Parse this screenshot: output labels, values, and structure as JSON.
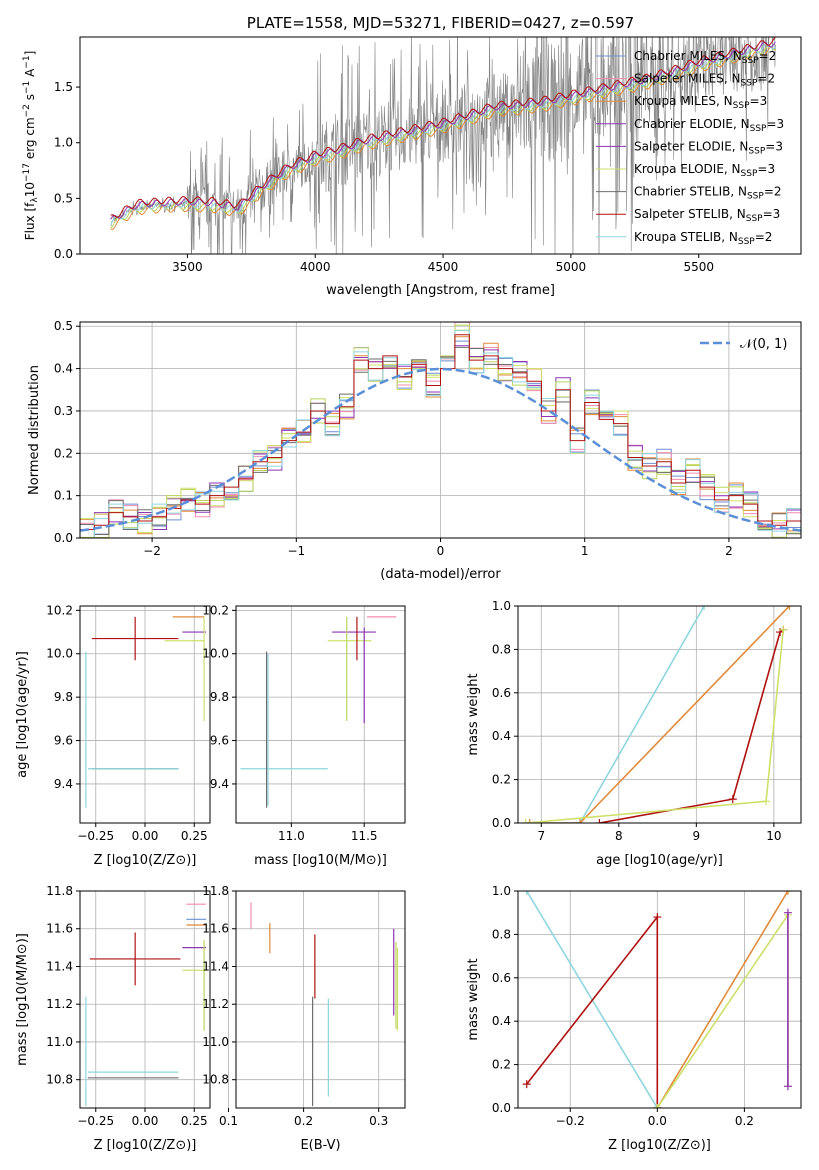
{
  "colors": {
    "chabrier_miles": "#6f8fcf",
    "salpeter_miles": "#f08cb0",
    "kroupa_miles": "#e08a3a",
    "chabrier_elodie": "#8e35b5",
    "salpeter_elodie": "#b9d65a",
    "kroupa_elodie": "#cfe06a",
    "chabrier_stelib": "#6e6e6e",
    "salpeter_stelib": "#b01010",
    "kroupa_stelib": "#8fd6df",
    "gauss": "#5b8fd8",
    "data": "#808080"
  },
  "legend1": {
    "entries": [
      {
        "pre": "Chabrier MILES, N",
        "sub": "SSP",
        "post": "=2",
        "color": "chabrier_miles"
      },
      {
        "pre": "Salpeter MILES, N",
        "sub": "SSP",
        "post": "=2",
        "color": "salpeter_miles"
      },
      {
        "pre": "Kroupa MILES, N",
        "sub": "SSP",
        "post": "=3",
        "color": "kroupa_miles"
      },
      {
        "pre": "Chabrier ELODIE, N",
        "sub": "SSP",
        "post": "=3",
        "color": "chabrier_elodie"
      },
      {
        "pre": "Salpeter ELODIE, N",
        "sub": "SSP",
        "post": "=3",
        "color": "chabrier_elodie"
      },
      {
        "pre": "Kroupa ELODIE, N",
        "sub": "SSP",
        "post": "=3",
        "color": "kroupa_elodie"
      },
      {
        "pre": "Chabrier STELIB, N",
        "sub": "SSP",
        "post": "=2",
        "color": "chabrier_stelib"
      },
      {
        "pre": "Salpeter STELIB, N",
        "sub": "SSP",
        "post": "=3",
        "color": "salpeter_stelib"
      },
      {
        "pre": "Kroupa STELIB, N",
        "sub": "SSP",
        "post": "=2",
        "color": "kroupa_stelib"
      }
    ]
  },
  "legend2": {
    "label": "𝒩(0, 1)"
  },
  "chart_data": [
    {
      "type": "line",
      "title": "PLATE=1558, MJD=53271, FIBERID=0427, z=0.597",
      "xlabel": "wavelength [Angstrom, rest frame]",
      "ylabel": "Flux [f_λ 10^-17 erg cm^-2 s^-1 A^-1]",
      "xlim": [
        3080,
        5900
      ],
      "ylim": [
        0,
        1.95
      ],
      "xticks": [
        "3500",
        "4000",
        "4500",
        "5000",
        "5500"
      ],
      "yticks": [
        "0.0",
        "0.5",
        "1.0",
        "1.5"
      ],
      "model_x": [
        3200,
        3300,
        3400,
        3500,
        3600,
        3700,
        3800,
        3900,
        4000,
        4100,
        4200,
        4300,
        4400,
        4500,
        4600,
        4700,
        4800,
        4900,
        5000,
        5100,
        5200,
        5300,
        5400,
        5500,
        5600,
        5700,
        5800
      ],
      "model_y": [
        0.28,
        0.42,
        0.44,
        0.45,
        0.44,
        0.4,
        0.6,
        0.76,
        0.86,
        0.92,
        1.0,
        1.05,
        1.1,
        1.15,
        1.22,
        1.3,
        1.32,
        1.35,
        1.4,
        1.45,
        1.5,
        1.55,
        1.62,
        1.7,
        1.76,
        1.82,
        1.88
      ]
    },
    {
      "type": "bar",
      "title": "",
      "xlabel": "(data-model)/error",
      "ylabel": "Normed distribution",
      "xlim": [
        -2.5,
        2.5
      ],
      "ylim": [
        0,
        0.51
      ],
      "xticks": [
        "−2",
        "−1",
        "0",
        "1",
        "2"
      ],
      "yticks": [
        "0.0",
        "0.1",
        "0.2",
        "0.3",
        "0.4",
        "0.5"
      ],
      "bins": [
        -2.5,
        -2.4,
        -2.3,
        -2.2,
        -2.1,
        -2.0,
        -1.9,
        -1.8,
        -1.7,
        -1.6,
        -1.5,
        -1.4,
        -1.3,
        -1.2,
        -1.1,
        -1.0,
        -0.9,
        -0.8,
        -0.7,
        -0.6,
        -0.5,
        -0.4,
        -0.3,
        -0.2,
        -0.1,
        0.0,
        0.1,
        0.2,
        0.3,
        0.4,
        0.5,
        0.6,
        0.7,
        0.8,
        0.9,
        1.0,
        1.1,
        1.2,
        1.3,
        1.4,
        1.5,
        1.6,
        1.7,
        1.8,
        1.9,
        2.0,
        2.1,
        2.2,
        2.3,
        2.4,
        2.5
      ],
      "hist": [
        0.02,
        0.03,
        0.06,
        0.05,
        0.04,
        0.05,
        0.07,
        0.09,
        0.08,
        0.1,
        0.12,
        0.14,
        0.18,
        0.19,
        0.23,
        0.25,
        0.3,
        0.27,
        0.31,
        0.42,
        0.4,
        0.43,
        0.38,
        0.41,
        0.36,
        0.4,
        0.48,
        0.42,
        0.43,
        0.4,
        0.39,
        0.37,
        0.3,
        0.35,
        0.23,
        0.32,
        0.28,
        0.27,
        0.19,
        0.17,
        0.18,
        0.13,
        0.16,
        0.12,
        0.09,
        0.1,
        0.08,
        0.04,
        0.03,
        0.04
      ],
      "series": [
        {
          "name": "𝒩(0, 1)",
          "type": "gaussian",
          "mu": 0,
          "sigma": 1
        }
      ]
    },
    {
      "type": "scatter",
      "xlabel": "Z [log10(Z/Z⊙)]",
      "ylabel": "age [log10(age/yr)]",
      "xlim": [
        -0.33,
        0.33
      ],
      "ylim": [
        9.22,
        10.22
      ],
      "xticks": [
        "−0.25",
        "0.00",
        "0.25"
      ],
      "yticks": [
        "9.4",
        "9.6",
        "9.8",
        "10.0",
        "10.2"
      ],
      "points": [
        {
          "x": -0.05,
          "xerr": 0.22,
          "y": 10.07,
          "yerr": 0.1,
          "color": "salpeter_stelib"
        },
        {
          "x": -0.05,
          "xerr": 0.22,
          "y": 9.47,
          "yerr": 0.0,
          "color": "chabrier_stelib"
        },
        {
          "x": -0.06,
          "xerr": 0.23,
          "y": 9.47,
          "yerr": 0.0,
          "color": "kroupa_stelib"
        },
        {
          "x": -0.3,
          "xerr": 0.0,
          "y": 9.65,
          "yerr": 0.36,
          "color": "kroupa_stelib"
        },
        {
          "x": 0.22,
          "xerr": 0.08,
          "y": 10.17,
          "yerr": 0.0,
          "color": "kroupa_miles"
        },
        {
          "x": 0.25,
          "xerr": 0.06,
          "y": 10.1,
          "yerr": 0.0,
          "color": "chabrier_elodie"
        },
        {
          "x": 0.2,
          "xerr": 0.1,
          "y": 10.06,
          "yerr": 0.0,
          "color": "kroupa_elodie"
        },
        {
          "x": 0.3,
          "xerr": 0.0,
          "y": 9.93,
          "yerr": 0.24,
          "color": "kroupa_elodie"
        }
      ]
    },
    {
      "type": "scatter",
      "xlabel": "mass [log10(M/M⊙)]",
      "ylabel": "",
      "xlim": [
        10.62,
        11.78
      ],
      "ylim": [
        9.22,
        10.22
      ],
      "xticks": [
        "11.0",
        "11.5"
      ],
      "yticks": [
        "9.4",
        "9.6",
        "9.8",
        "10.0",
        "10.2"
      ],
      "points": [
        {
          "x": 10.95,
          "xerr": 0.3,
          "y": 9.47,
          "yerr": 0.0,
          "color": "kroupa_stelib"
        },
        {
          "x": 10.83,
          "xerr": 0.0,
          "y": 9.65,
          "yerr": 0.36,
          "color": "chabrier_stelib"
        },
        {
          "x": 10.84,
          "xerr": 0.0,
          "y": 9.65,
          "yerr": 0.35,
          "color": "kroupa_stelib"
        },
        {
          "x": 11.43,
          "xerr": 0.15,
          "y": 10.1,
          "yerr": 0.0,
          "color": "chabrier_elodie"
        },
        {
          "x": 11.4,
          "xerr": 0.15,
          "y": 10.06,
          "yerr": 0.0,
          "color": "kroupa_elodie"
        },
        {
          "x": 11.5,
          "xerr": 0.0,
          "y": 9.9,
          "yerr": 0.22,
          "color": "chabrier_elodie"
        },
        {
          "x": 11.38,
          "xerr": 0.0,
          "y": 9.93,
          "yerr": 0.24,
          "color": "salpeter_elodie"
        },
        {
          "x": 11.45,
          "xerr": 0.0,
          "y": 10.07,
          "yerr": 0.1,
          "color": "salpeter_stelib"
        },
        {
          "x": 11.62,
          "xerr": 0.1,
          "y": 10.17,
          "yerr": 0.0,
          "color": "salpeter_miles"
        }
      ]
    },
    {
      "type": "line",
      "xlabel": "age  [log10(age/yr)]",
      "ylabel": "mass weight",
      "xlim": [
        6.7,
        10.35
      ],
      "ylim": [
        0,
        1
      ],
      "xticks": [
        "7",
        "8",
        "9",
        "10"
      ],
      "yticks": [
        "0.0",
        "0.2",
        "0.4",
        "0.6",
        "0.8",
        "1.0"
      ],
      "series": [
        {
          "color": "kroupa_stelib",
          "x": [
            6.85,
            7.5,
            9.1
          ],
          "y": [
            0.0,
            0.0,
            1.0
          ]
        },
        {
          "color": "kroupa_miles",
          "x": [
            6.85,
            7.5,
            10.2
          ],
          "y": [
            0.0,
            0.0,
            1.0
          ]
        },
        {
          "color": "salpeter_stelib",
          "x": [
            7.75,
            9.47,
            10.08,
            10.12
          ],
          "y": [
            0.0,
            0.11,
            0.88,
            0.89
          ]
        },
        {
          "color": "kroupa_elodie",
          "x": [
            6.8,
            9.9,
            10.12
          ],
          "y": [
            0.0,
            0.1,
            0.89
          ]
        }
      ]
    },
    {
      "type": "scatter",
      "xlabel": "Z [log10(Z/Z⊙)]",
      "ylabel": "mass [log10(M/M⊙)]",
      "xlim": [
        -0.33,
        0.33
      ],
      "ylim": [
        10.65,
        11.8
      ],
      "xticks": [
        "−0.25",
        "0.00",
        "0.25"
      ],
      "yticks": [
        "10.8",
        "11.0",
        "11.2",
        "11.4",
        "11.6",
        "11.8"
      ],
      "points": [
        {
          "x": -0.05,
          "xerr": 0.23,
          "y": 11.44,
          "yerr": 0.14,
          "color": "salpeter_stelib"
        },
        {
          "x": -0.06,
          "xerr": 0.23,
          "y": 10.84,
          "yerr": 0.0,
          "color": "kroupa_stelib"
        },
        {
          "x": -0.06,
          "xerr": 0.23,
          "y": 10.81,
          "yerr": 0.0,
          "color": "chabrier_stelib"
        },
        {
          "x": -0.3,
          "xerr": 0.0,
          "y": 10.95,
          "yerr": 0.29,
          "color": "kroupa_stelib"
        },
        {
          "x": 0.26,
          "xerr": 0.05,
          "y": 11.73,
          "yerr": 0.0,
          "color": "salpeter_miles"
        },
        {
          "x": 0.26,
          "xerr": 0.05,
          "y": 11.65,
          "yerr": 0.0,
          "color": "chabrier_miles"
        },
        {
          "x": 0.26,
          "xerr": 0.05,
          "y": 11.62,
          "yerr": 0.0,
          "color": "kroupa_miles"
        },
        {
          "x": 0.25,
          "xerr": 0.06,
          "y": 11.5,
          "yerr": 0.0,
          "color": "chabrier_elodie"
        },
        {
          "x": 0.25,
          "xerr": 0.06,
          "y": 11.38,
          "yerr": 0.0,
          "color": "kroupa_elodie"
        },
        {
          "x": 0.3,
          "xerr": 0.0,
          "y": 11.3,
          "yerr": 0.24,
          "color": "salpeter_elodie"
        }
      ]
    },
    {
      "type": "scatter",
      "xlabel": "E(B-V)",
      "ylabel": "",
      "xlim": [
        0.11,
        0.335
      ],
      "ylim": [
        10.65,
        11.8
      ],
      "xticks": [
        "0.1",
        "0.2",
        "0.3"
      ],
      "yticks": [
        "10.8",
        "11.0",
        "11.2",
        "11.4",
        "11.6",
        "11.8"
      ],
      "points": [
        {
          "x": 0.13,
          "xerr": 0.0,
          "y": 11.67,
          "yerr": 0.07,
          "color": "salpeter_miles"
        },
        {
          "x": 0.155,
          "xerr": 0.0,
          "y": 11.55,
          "yerr": 0.08,
          "color": "kroupa_miles"
        },
        {
          "x": 0.212,
          "xerr": 0.0,
          "y": 10.95,
          "yerr": 0.29,
          "color": "chabrier_stelib"
        },
        {
          "x": 0.215,
          "xerr": 0.0,
          "y": 11.4,
          "yerr": 0.17,
          "color": "salpeter_stelib"
        },
        {
          "x": 0.233,
          "xerr": 0.0,
          "y": 10.97,
          "yerr": 0.26,
          "color": "kroupa_stelib"
        },
        {
          "x": 0.32,
          "xerr": 0.0,
          "y": 11.37,
          "yerr": 0.23,
          "color": "chabrier_elodie"
        },
        {
          "x": 0.323,
          "xerr": 0.0,
          "y": 11.3,
          "yerr": 0.23,
          "color": "salpeter_elodie"
        },
        {
          "x": 0.325,
          "xerr": 0.0,
          "y": 11.28,
          "yerr": 0.22,
          "color": "kroupa_elodie"
        }
      ]
    },
    {
      "type": "line",
      "xlabel": "Z [log10(Z/Z⊙)]",
      "ylabel": "mass weight",
      "xlim": [
        -0.32,
        0.33
      ],
      "ylim": [
        0,
        1
      ],
      "xticks": [
        "−0.2",
        "0.0",
        "0.2"
      ],
      "yticks": [
        "0.0",
        "0.2",
        "0.4",
        "0.6",
        "0.8",
        "1.0"
      ],
      "series": [
        {
          "color": "kroupa_stelib",
          "x": [
            -0.3,
            0.0,
            0.0
          ],
          "y": [
            1.0,
            0.0,
            0.0
          ]
        },
        {
          "color": "salpeter_stelib",
          "x": [
            -0.3,
            0.0,
            0.0
          ],
          "y": [
            0.11,
            0.88,
            0.0
          ]
        },
        {
          "color": "kroupa_miles",
          "x": [
            0.0,
            0.3
          ],
          "y": [
            0.0,
            1.0
          ]
        },
        {
          "color": "kroupa_elodie",
          "x": [
            0.0,
            0.3,
            0.3
          ],
          "y": [
            0.0,
            0.89,
            0.1
          ]
        },
        {
          "color": "chabrier_elodie",
          "x": [
            0.3,
            0.3
          ],
          "y": [
            0.1,
            0.9
          ]
        }
      ]
    }
  ]
}
